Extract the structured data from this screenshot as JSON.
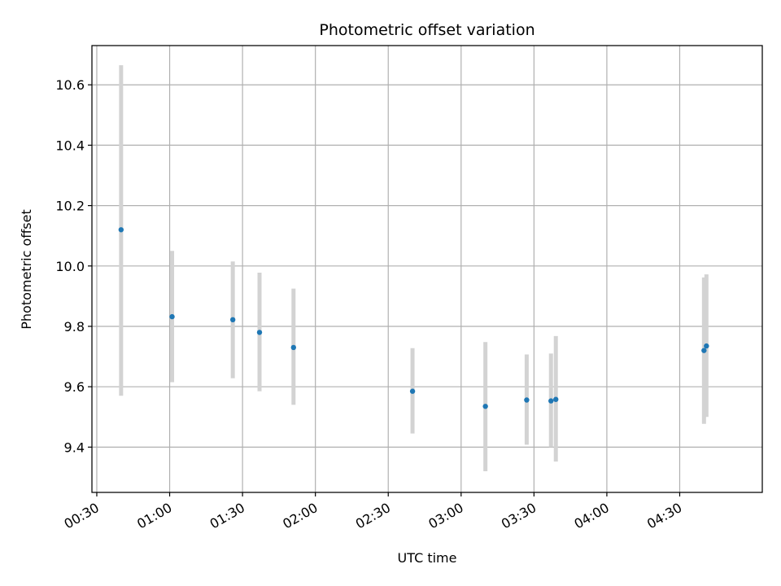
{
  "chart_data": {
    "type": "scatter",
    "title": "Photometric offset variation",
    "xlabel": "UTC time",
    "ylabel": "Photometric offset",
    "xlim": [
      "00:28",
      "05:04"
    ],
    "ylim": [
      9.25,
      10.73
    ],
    "grid": true,
    "x_ticks": [
      "00:30",
      "01:00",
      "01:30",
      "02:00",
      "02:30",
      "03:00",
      "03:30",
      "04:00",
      "04:30"
    ],
    "y_ticks": [
      "9.4",
      "9.6",
      "9.8",
      "10.0",
      "10.2",
      "10.4",
      "10.6"
    ],
    "colors": {
      "point": "#1f77b4",
      "errorbar": "#d3d3d3",
      "grid": "#b0b0b0"
    },
    "points": [
      {
        "x": "00:40",
        "y": 10.12,
        "low": 9.57,
        "high": 10.665
      },
      {
        "x": "01:01",
        "y": 9.832,
        "low": 9.615,
        "high": 10.05
      },
      {
        "x": "01:26",
        "y": 9.822,
        "low": 9.628,
        "high": 10.015
      },
      {
        "x": "01:37",
        "y": 9.78,
        "low": 9.585,
        "high": 9.978
      },
      {
        "x": "01:51",
        "y": 9.73,
        "low": 9.54,
        "high": 9.925
      },
      {
        "x": "02:40",
        "y": 9.585,
        "low": 9.445,
        "high": 9.728
      },
      {
        "x": "03:10",
        "y": 9.535,
        "low": 9.32,
        "high": 9.748
      },
      {
        "x": "03:27",
        "y": 9.556,
        "low": 9.408,
        "high": 9.707
      },
      {
        "x": "03:37",
        "y": 9.553,
        "low": 9.4,
        "high": 9.71
      },
      {
        "x": "03:39",
        "y": 9.558,
        "low": 9.352,
        "high": 9.768
      },
      {
        "x": "04:40",
        "y": 9.72,
        "low": 9.477,
        "high": 9.962
      },
      {
        "x": "04:41",
        "y": 9.735,
        "low": 9.5,
        "high": 9.972
      }
    ]
  }
}
